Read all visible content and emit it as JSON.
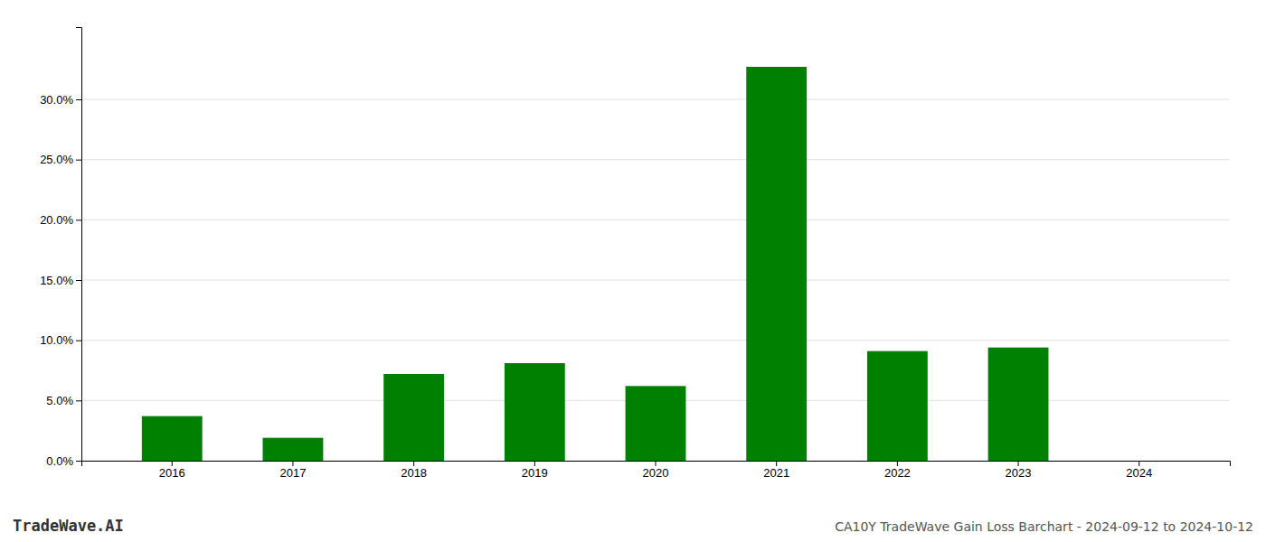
{
  "chart_data": {
    "type": "bar",
    "title": "CA10Y TradeWave Gain Loss Barchart - 2024-09-12 to 2024-10-12",
    "annotations": [
      "TradeWave.AI"
    ],
    "categories": [
      "2016",
      "2017",
      "2018",
      "2019",
      "2020",
      "2021",
      "2022",
      "2023",
      "2024"
    ],
    "values": [
      0.037,
      0.019,
      0.072,
      0.081,
      0.062,
      0.327,
      0.091,
      0.094,
      0.0
    ],
    "color": "#008000",
    "ylim": [
      0.0,
      0.36
    ],
    "yticks": [
      {
        "value": 0.0,
        "label": "0.0%"
      },
      {
        "value": 0.05,
        "label": "5.0%"
      },
      {
        "value": 0.1,
        "label": "10.0%"
      },
      {
        "value": 0.15,
        "label": "15.0%"
      },
      {
        "value": 0.2,
        "label": "20.0%"
      },
      {
        "value": 0.25,
        "label": "25.0%"
      },
      {
        "value": 0.3,
        "label": "30.0%"
      }
    ],
    "grid": true
  }
}
